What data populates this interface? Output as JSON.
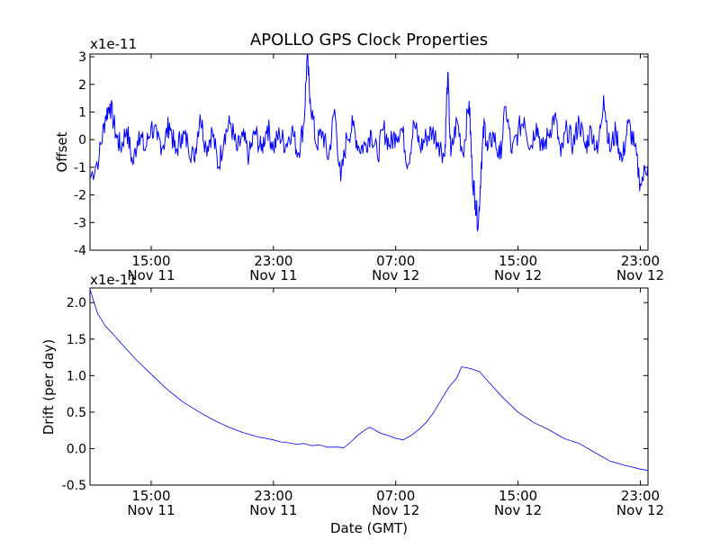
{
  "figure": {
    "title": "APOLLO GPS Clock Properties"
  },
  "colors": {
    "series": "#0000ff",
    "axis": "#000000",
    "background": "#ffffff"
  },
  "chart_data": [
    {
      "type": "line",
      "title": "APOLLO GPS Clock Properties",
      "xlabel": "",
      "ylabel": "Offset",
      "scale_label": "x1e-11",
      "x_unit": "hours since Nov 11 11:00 GMT",
      "xlim": [
        0,
        36.5
      ],
      "ylim": [
        -4,
        3.1
      ],
      "yticks": [
        -4,
        -3,
        -2,
        -1,
        0,
        1,
        2,
        3
      ],
      "ytick_labels": [
        "-4",
        "-3",
        "-2",
        "-1",
        "0",
        "1",
        "2",
        "3"
      ],
      "xticks": [
        {
          "x": 4,
          "time": "15:00",
          "date": "Nov 11"
        },
        {
          "x": 12,
          "time": "23:00",
          "date": "Nov 11"
        },
        {
          "x": 20,
          "time": "07:00",
          "date": "Nov 12"
        },
        {
          "x": 28,
          "time": "15:00",
          "date": "Nov 12"
        },
        {
          "x": 36,
          "time": "23:00",
          "date": "Nov 12"
        }
      ],
      "grid": false,
      "series": [
        {
          "name": "Offset",
          "x": [
            0.0,
            0.6,
            1.0,
            1.3,
            1.7,
            2.0,
            2.4,
            2.8,
            3.2,
            3.6,
            4.0,
            4.4,
            4.8,
            5.2,
            5.6,
            6.0,
            6.4,
            6.8,
            7.2,
            7.6,
            8.0,
            8.4,
            8.8,
            9.2,
            9.6,
            10.0,
            10.4,
            10.8,
            11.2,
            11.6,
            12.0,
            12.4,
            12.8,
            13.2,
            13.6,
            14.0,
            14.2,
            14.4,
            14.8,
            15.2,
            15.6,
            16.0,
            16.4,
            16.8,
            17.2,
            17.6,
            18.0,
            18.4,
            18.8,
            19.2,
            19.6,
            20.0,
            20.4,
            20.8,
            21.2,
            21.6,
            22.0,
            22.4,
            22.8,
            23.2,
            23.4,
            23.6,
            24.0,
            24.4,
            24.8,
            25.0,
            25.2,
            25.4,
            25.6,
            25.8,
            26.0,
            26.4,
            26.8,
            27.2,
            27.6,
            28.0,
            28.4,
            28.8,
            29.2,
            29.6,
            30.0,
            30.4,
            30.8,
            31.2,
            31.6,
            32.0,
            32.4,
            32.8,
            33.2,
            33.6,
            34.0,
            34.4,
            34.8,
            35.2,
            35.6,
            36.0,
            36.5
          ],
          "values": [
            -1.4,
            -0.6,
            0.8,
            1.3,
            0.2,
            -0.3,
            0.4,
            -0.9,
            0.3,
            -0.4,
            0.5,
            0.0,
            -0.2,
            0.6,
            -0.5,
            0.2,
            -0.1,
            -0.7,
            0.9,
            -0.3,
            0.3,
            -1.0,
            0.2,
            0.6,
            -0.4,
            0.1,
            -0.6,
            0.3,
            -0.4,
            0.5,
            -0.3,
            0.2,
            -0.2,
            0.4,
            -0.5,
            0.6,
            3.0,
            1.5,
            -0.2,
            0.3,
            -0.7,
            1.1,
            -1.5,
            0.1,
            0.5,
            -0.3,
            -0.2,
            0.3,
            -0.6,
            0.4,
            -0.2,
            0.2,
            0.4,
            -0.9,
            0.6,
            -0.3,
            0.1,
            0.3,
            -0.1,
            -0.6,
            2.4,
            -0.6,
            0.7,
            -0.5,
            1.4,
            -1.2,
            -2.2,
            -3.1,
            -0.8,
            0.6,
            -0.4,
            0.2,
            -0.7,
            1.2,
            -0.5,
            0.3,
            0.8,
            -0.3,
            0.6,
            -0.4,
            0.2,
            0.9,
            -0.6,
            0.4,
            -0.2,
            0.7,
            -0.3,
            0.4,
            -0.5,
            1.6,
            -0.4,
            0.3,
            -0.8,
            0.6,
            -0.2,
            -1.6,
            -0.9
          ]
        }
      ]
    },
    {
      "type": "line",
      "title": "",
      "xlabel": "Date (GMT)",
      "ylabel": "Drift (per day)",
      "scale_label": "x1e-11",
      "x_unit": "hours since Nov 11 11:00 GMT",
      "xlim": [
        0,
        36.5
      ],
      "ylim": [
        -0.5,
        2.2
      ],
      "yticks": [
        -0.5,
        0.0,
        0.5,
        1.0,
        1.5,
        2.0
      ],
      "ytick_labels": [
        "-0.5",
        "0.0",
        "0.5",
        "1.0",
        "1.5",
        "2.0"
      ],
      "xticks": [
        {
          "x": 4,
          "time": "15:00",
          "date": "Nov 11"
        },
        {
          "x": 12,
          "time": "23:00",
          "date": "Nov 11"
        },
        {
          "x": 20,
          "time": "07:00",
          "date": "Nov 12"
        },
        {
          "x": 28,
          "time": "15:00",
          "date": "Nov 12"
        },
        {
          "x": 36,
          "time": "23:00",
          "date": "Nov 12"
        }
      ],
      "grid": false,
      "series": [
        {
          "name": "Drift",
          "x": [
            0.0,
            0.5,
            1.0,
            1.5,
            2.0,
            3.0,
            4.0,
            5.0,
            6.0,
            7.0,
            8.0,
            9.0,
            10.0,
            11.0,
            12.0,
            12.5,
            13.0,
            13.5,
            14.0,
            14.5,
            15.0,
            15.5,
            16.0,
            16.3,
            16.6,
            17.0,
            17.5,
            18.0,
            18.3,
            18.6,
            19.0,
            19.5,
            20.0,
            20.5,
            21.0,
            21.5,
            22.0,
            22.5,
            23.0,
            23.5,
            24.0,
            24.3,
            24.6,
            25.0,
            25.5,
            26.0,
            27.0,
            28.0,
            29.0,
            30.0,
            31.0,
            32.0,
            33.0,
            34.0,
            35.0,
            36.0,
            36.5
          ],
          "values": [
            2.18,
            1.85,
            1.68,
            1.57,
            1.45,
            1.22,
            1.02,
            0.82,
            0.65,
            0.52,
            0.4,
            0.3,
            0.22,
            0.16,
            0.12,
            0.09,
            0.08,
            0.06,
            0.07,
            0.04,
            0.05,
            0.02,
            0.02,
            0.02,
            0.01,
            0.08,
            0.18,
            0.26,
            0.29,
            0.26,
            0.21,
            0.18,
            0.14,
            0.12,
            0.18,
            0.26,
            0.36,
            0.5,
            0.68,
            0.85,
            0.97,
            1.12,
            1.11,
            1.09,
            1.05,
            0.93,
            0.7,
            0.5,
            0.36,
            0.26,
            0.14,
            0.07,
            -0.05,
            -0.17,
            -0.23,
            -0.28,
            -0.3
          ]
        }
      ]
    }
  ]
}
